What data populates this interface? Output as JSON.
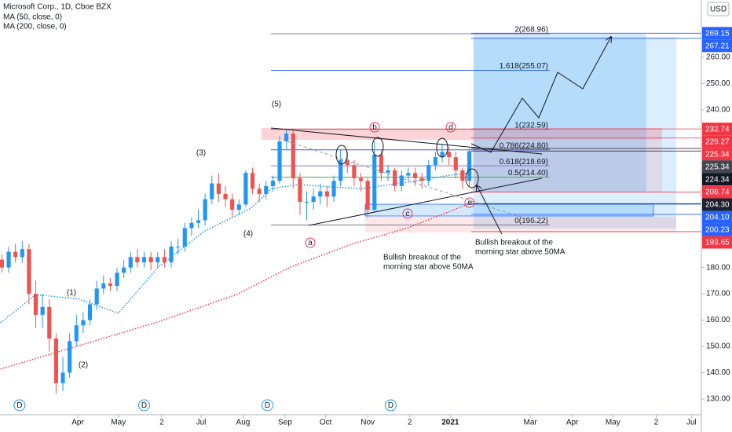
{
  "chart_data": {
    "type": "candlestick",
    "title": "Microsoft Corp., 1D, Cboe BZX",
    "currency": "USD",
    "xlim": [
      -26.4,
      491.3
    ],
    "ylim": [
      124,
      281.8
    ],
    "xticks": [
      {
        "value": 31,
        "label": "Apr"
      },
      {
        "value": 61,
        "label": "May"
      },
      {
        "value": 93,
        "label": "2"
      },
      {
        "value": 122,
        "label": "Jul"
      },
      {
        "value": 153,
        "label": "Aug"
      },
      {
        "value": 184,
        "label": "Sep"
      },
      {
        "value": 214,
        "label": "Oct"
      },
      {
        "value": 245,
        "label": "Nov"
      },
      {
        "value": 276,
        "label": "2"
      },
      {
        "value": 306,
        "label": "2021"
      },
      {
        "value": 365,
        "label": "Mar"
      },
      {
        "value": 396,
        "label": "Apr"
      },
      {
        "value": 426,
        "label": "May"
      },
      {
        "value": 458,
        "label": "2"
      },
      {
        "value": 484,
        "label": "Jul"
      }
    ],
    "yticks": [
      {
        "value": 130,
        "label": "130.00"
      },
      {
        "value": 140,
        "label": "140.00"
      },
      {
        "value": 150,
        "label": "150.00"
      },
      {
        "value": 160,
        "label": "160.00"
      },
      {
        "value": 170,
        "label": "170.00"
      },
      {
        "value": 180,
        "label": "180.00"
      },
      {
        "value": 240,
        "label": "240.00"
      },
      {
        "value": 250,
        "label": "250.00"
      },
      {
        "value": 260,
        "label": "260.00"
      }
    ],
    "up_color": "#2196f3",
    "down_color": "#ef5350",
    "x": [
      -25,
      -20,
      -15,
      -10,
      -5,
      0,
      5,
      10,
      15,
      20,
      25,
      30,
      35,
      40,
      45,
      50,
      55,
      60,
      65,
      70,
      75,
      80,
      85,
      90,
      95,
      100,
      105,
      110,
      115,
      120,
      125,
      130,
      135,
      140,
      145,
      150,
      155,
      160,
      165,
      170,
      175,
      180,
      185,
      190,
      195,
      200,
      205,
      210,
      215,
      220,
      225,
      230,
      235,
      240,
      245,
      250,
      255,
      260,
      265,
      270,
      275,
      280,
      285,
      290,
      295,
      300,
      305,
      310,
      315,
      320
    ],
    "open": [
      183,
      180,
      186,
      184,
      187,
      170,
      162,
      165,
      153,
      136,
      140,
      152,
      158,
      160,
      166,
      172,
      174,
      173,
      178,
      180,
      184,
      182,
      184,
      182,
      184,
      182,
      188,
      188,
      195,
      197,
      198,
      206,
      212,
      208,
      206,
      202,
      204,
      216,
      210,
      208,
      211,
      213,
      228,
      231,
      214,
      205,
      205,
      207,
      209,
      207,
      213,
      221,
      219,
      214,
      213,
      202,
      223,
      216,
      217,
      211,
      215,
      216,
      214,
      213,
      219,
      222,
      224,
      222,
      217,
      213
    ],
    "high": [
      185,
      188,
      189,
      190,
      189,
      175,
      170,
      168,
      155,
      146,
      155,
      162,
      163,
      168,
      175,
      177,
      176,
      180,
      183,
      186,
      187,
      186,
      186,
      186,
      187,
      190,
      191,
      197,
      199,
      202,
      208,
      215,
      216,
      211,
      208,
      206,
      217,
      218,
      212,
      213,
      215,
      230,
      232.6,
      232,
      216,
      209,
      210,
      212,
      211,
      215,
      225,
      224,
      221,
      216,
      214,
      228,
      225,
      219,
      218,
      217,
      218,
      218,
      216,
      221,
      224,
      227,
      226,
      224,
      218,
      225.3
    ],
    "low": [
      178,
      178,
      182,
      182,
      166,
      157,
      157,
      148,
      132,
      133,
      138,
      150,
      155,
      158,
      164,
      170,
      171,
      171,
      176,
      178,
      180,
      180,
      179,
      180,
      180,
      180,
      185,
      186,
      192,
      195,
      196,
      204,
      205,
      203,
      199,
      200,
      203,
      208,
      205,
      206,
      209,
      212,
      225,
      210,
      200,
      198,
      202,
      204,
      203,
      205,
      211,
      216,
      211,
      209,
      199,
      201,
      213,
      213,
      209,
      209,
      213,
      211,
      210,
      211,
      217,
      220,
      219,
      214,
      210,
      211
    ],
    "close": [
      180,
      186,
      184,
      187,
      170,
      162,
      165,
      153,
      136,
      140,
      152,
      158,
      160,
      166,
      172,
      174,
      173,
      178,
      180,
      184,
      182,
      184,
      182,
      184,
      182,
      188,
      188,
      195,
      197,
      198,
      206,
      212,
      208,
      206,
      202,
      204,
      216,
      210,
      208,
      211,
      213,
      228,
      231,
      214,
      205,
      205,
      207,
      209,
      207,
      213,
      221,
      219,
      214,
      213,
      202,
      223,
      216,
      217,
      211,
      215,
      216,
      214,
      213,
      219,
      222,
      224,
      222,
      217,
      213,
      224.3
    ],
    "overlays": [
      {
        "name": "MA (50, close, 0)",
        "color": "#2196f3",
        "x": [
          -26,
          0,
          32,
          61,
          90,
          124,
          159,
          174,
          194,
          217,
          240,
          275,
          310,
          322
        ],
        "values": [
          159,
          169.7,
          168,
          162.6,
          180,
          193.7,
          202.6,
          210,
          211.6,
          210.7,
          210,
          212.5,
          215.5,
          216
        ]
      },
      {
        "name": "MA (200, close, 0)",
        "color": "#f23645",
        "x": [
          -26,
          32,
          90,
          148,
          188,
          235,
          275,
          322
        ],
        "values": [
          141.4,
          150.3,
          159.3,
          169.7,
          180.2,
          189.2,
          195.2,
          204.7
        ]
      }
    ],
    "fib_levels": [
      {
        "label": "2(268.96)",
        "value": 268.96,
        "color": "#9575cd"
      },
      {
        "label": "1.618(255.07)",
        "value": 255.07,
        "color": "#2962ff"
      },
      {
        "label": "1(232.59)",
        "value": 232.59,
        "color": "#787b86"
      },
      {
        "label": "0.786(224.80)",
        "value": 224.8,
        "color": "#2962ff"
      },
      {
        "label": "0.618(218.69)",
        "value": 218.69,
        "color": "#9575cd"
      },
      {
        "label": "0.5(214.40)",
        "value": 214.4,
        "color": "#4caf50"
      },
      {
        "label": "0(196.22)",
        "value": 196.22,
        "color": "#787b86"
      }
    ],
    "price_tags": [
      {
        "value": 269.15,
        "color": "#2962ff"
      },
      {
        "value": 267.21,
        "color": "#2962ff"
      },
      {
        "value": 232.74,
        "color": "#f23645"
      },
      {
        "value": 229.27,
        "color": "#f23645"
      },
      {
        "value": 225.34,
        "color": "#f23645"
      },
      {
        "value": 225.34,
        "color": "#434651"
      },
      {
        "value": 224.34,
        "color": "#131722"
      },
      {
        "value": 208.74,
        "color": "#f23645"
      },
      {
        "value": 204.3,
        "label": "204.30",
        "color": "#1e222d"
      },
      {
        "value": 204.1,
        "label": "204.10",
        "color": "#2962ff"
      },
      {
        "value": 200.23,
        "color": "#2962ff"
      },
      {
        "value": 193.65,
        "color": "#f23645"
      }
    ],
    "dividends": {
      "x": [
        -12,
        80,
        171,
        262
      ],
      "label": "D"
    },
    "waves": [
      "(1)",
      "(2)",
      "(3)",
      "(4)",
      "(5)"
    ],
    "letters": [
      "a",
      "b",
      "c",
      "d",
      "e"
    ],
    "notes": [
      [
        "Bullish breakout of the",
        "morning star above 50MA"
      ],
      [
        "Bullish breakout of the",
        "morning star above 50MA"
      ]
    ]
  }
}
